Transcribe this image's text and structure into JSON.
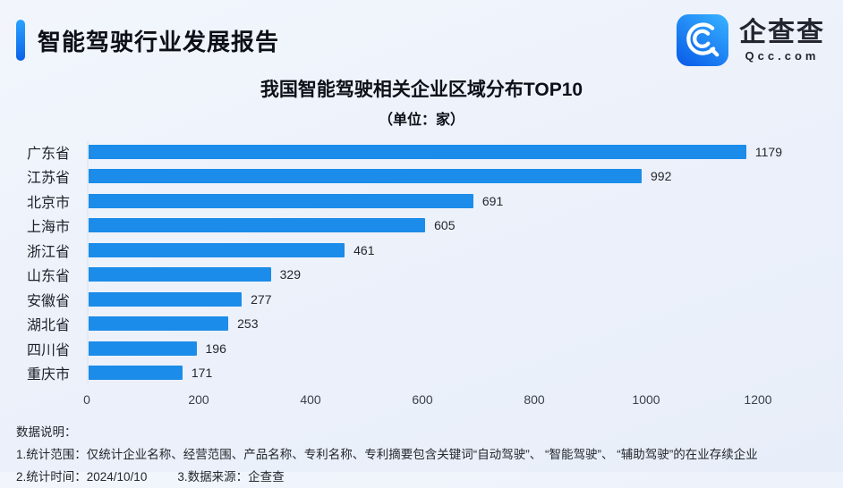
{
  "header": {
    "title": "智能驾驶行业发展报告"
  },
  "logo": {
    "name": "企查查",
    "domain": "Qcc.com",
    "icon": "qcc-magnifier-icon",
    "icon_gradient_top": "#35aeff",
    "icon_gradient_bottom": "#0b5fe9"
  },
  "chart_data": {
    "type": "bar",
    "orientation": "horizontal",
    "title": "我国智能驾驶相关企业区域分布TOP10",
    "subtitle": "（单位：家）",
    "categories": [
      "广东省",
      "江苏省",
      "北京市",
      "上海市",
      "浙江省",
      "山东省",
      "安徽省",
      "湖北省",
      "四川省",
      "重庆市"
    ],
    "values": [
      1179,
      992,
      691,
      605,
      461,
      329,
      277,
      253,
      196,
      171
    ],
    "xlabel": "",
    "ylabel": "",
    "xlim": [
      0,
      1200
    ],
    "x_ticks": [
      0,
      200,
      400,
      600,
      800,
      1000,
      1200
    ],
    "bar_color": "#1b8ce9",
    "grid": false,
    "value_labels": true,
    "legend": "none"
  },
  "footnotes": {
    "heading": "数据说明：",
    "line1": "1.统计范围：仅统计企业名称、经营范围、产品名称、专利名称、专利摘要包含关键词“自动驾驶”、 “智能驾驶”、 “辅助驾驶”的在业存续企业",
    "line2_time": "2.统计时间：2024/10/10",
    "line2_source": "3.数据来源：企查查"
  },
  "colors": {
    "accent_gradient_top": "#2ba3ff",
    "accent_gradient_bottom": "#0b62e8",
    "background": "#edf1fa",
    "text_dark": "#0d1117"
  }
}
